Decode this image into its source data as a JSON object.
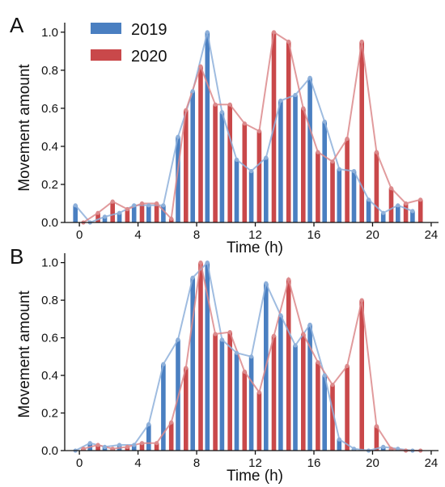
{
  "colors": {
    "series_2019": "#4a7fc1",
    "series_2020": "#c9484a",
    "line_2019": "#8eb0da",
    "line_2020": "#dc8a8c"
  },
  "legend": {
    "entries": [
      "2019",
      "2020"
    ],
    "placement": "top-left"
  },
  "chart_data": [
    {
      "type": "bar",
      "panel": "A",
      "xlabel": "Time (h)",
      "ylabel": "Movement amount",
      "xlim": [
        -1,
        24.5
      ],
      "ylim": [
        0,
        1.05
      ],
      "xticks": [
        0,
        4,
        8,
        12,
        16,
        20,
        24
      ],
      "yticks": [
        0.0,
        0.2,
        0.4,
        0.6,
        0.8,
        1.0
      ],
      "series": [
        {
          "name": "2019",
          "values": [
            0.09,
            0.0,
            0.03,
            0.05,
            0.09,
            0.09,
            0.09,
            0.45,
            0.69,
            1.0,
            0.58,
            0.33,
            0.27,
            0.34,
            0.64,
            0.67,
            0.76,
            0.53,
            0.28,
            0.27,
            0.12,
            0.05,
            0.09,
            0.06
          ]
        },
        {
          "name": "2020",
          "values": [
            0.0,
            0.05,
            0.11,
            0.07,
            0.1,
            0.1,
            0.02,
            0.59,
            0.82,
            0.62,
            0.62,
            0.52,
            0.48,
            1.0,
            0.95,
            0.6,
            0.37,
            0.32,
            0.44,
            0.95,
            0.37,
            0.18,
            0.1,
            0.12
          ]
        }
      ],
      "x": [
        0,
        1,
        2,
        3,
        4,
        5,
        6,
        7,
        8,
        9,
        10,
        11,
        12,
        13,
        14,
        15,
        16,
        17,
        18,
        19,
        20,
        21,
        22,
        23
      ],
      "grid": false
    },
    {
      "type": "bar",
      "panel": "B",
      "xlabel": "Time (h)",
      "ylabel": "Movement amount",
      "xlim": [
        -1,
        24.5
      ],
      "ylim": [
        0,
        1.05
      ],
      "xticks": [
        0,
        4,
        8,
        12,
        16,
        20,
        24
      ],
      "yticks": [
        0.0,
        0.2,
        0.4,
        0.6,
        0.8,
        1.0
      ],
      "series": [
        {
          "name": "2019",
          "values": [
            0.0,
            0.04,
            0.02,
            0.03,
            0.03,
            0.14,
            0.46,
            0.59,
            0.92,
            1.0,
            0.59,
            0.52,
            0.5,
            0.89,
            0.72,
            0.56,
            0.67,
            0.4,
            0.06,
            0.01,
            0.0,
            0.02,
            0.01,
            0.0
          ]
        },
        {
          "name": "2020",
          "values": [
            0.01,
            0.03,
            0.01,
            0.02,
            0.04,
            0.04,
            0.15,
            0.44,
            1.0,
            0.62,
            0.63,
            0.42,
            0.31,
            0.61,
            0.91,
            0.62,
            0.47,
            0.35,
            0.45,
            0.8,
            0.13,
            0.01,
            0.0,
            0.0
          ]
        }
      ],
      "x": [
        0,
        1,
        2,
        3,
        4,
        5,
        6,
        7,
        8,
        9,
        10,
        11,
        12,
        13,
        14,
        15,
        16,
        17,
        18,
        19,
        20,
        21,
        22,
        23
      ],
      "grid": false
    }
  ]
}
